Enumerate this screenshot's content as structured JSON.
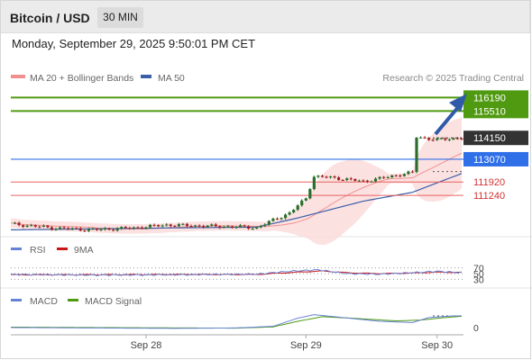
{
  "header": {
    "title": "Bitcoin / USD",
    "timeframe": "30 MIN"
  },
  "date_time": "Monday, September 29, 2025 9:50:01 PM CET",
  "copyright": "Research © 2025 Trading Central",
  "colors": {
    "resistance": "#4f9a10",
    "current": "#333333",
    "pivot": "#2f6fe8",
    "support": "#e86060",
    "ma50": "#3a5fa8",
    "bollinger": "#f29090",
    "rsi": "#6682d6",
    "rsi_ma": "#cc1414",
    "macd": "#6682d6",
    "macd_signal": "#4f9a10",
    "arrow": "#2e5aa8"
  },
  "chart_data": [
    {
      "type": "candlestick",
      "legend": [
        "MA 20 + Bollinger Bands",
        "MA 50"
      ],
      "x_ticks": [
        "Sep 28",
        "Sep 29",
        "Sep 30"
      ],
      "ylim": [
        109200,
        116800
      ],
      "levels": [
        {
          "label": "116190",
          "value": 116190,
          "kind": "resistance"
        },
        {
          "label": "115510",
          "value": 115510,
          "kind": "resistance"
        },
        {
          "label": "114150",
          "value": 114150,
          "kind": "current"
        },
        {
          "label": "113070",
          "value": 113070,
          "kind": "pivot"
        },
        {
          "label": "111920",
          "value": 111920,
          "kind": "support"
        },
        {
          "label": "111240",
          "value": 111240,
          "kind": "support"
        }
      ],
      "price_anchors": [
        [
          0,
          109800
        ],
        [
          10,
          109600
        ],
        [
          20,
          109500
        ],
        [
          30,
          109600
        ],
        [
          38,
          109750
        ],
        [
          46,
          109700
        ],
        [
          56,
          109650
        ],
        [
          60,
          109600
        ],
        [
          64,
          110000
        ],
        [
          68,
          110350
        ],
        [
          72,
          111100
        ],
        [
          74,
          112200
        ],
        [
          78,
          112150
        ],
        [
          82,
          112050
        ],
        [
          86,
          111950
        ],
        [
          90,
          112100
        ],
        [
          95,
          112300
        ],
        [
          98,
          112400
        ],
        [
          99,
          114200
        ],
        [
          104,
          114050
        ],
        [
          108,
          114120
        ],
        [
          110,
          114150
        ]
      ],
      "ma50_anchors": [
        [
          0,
          109500
        ],
        [
          40,
          109600
        ],
        [
          60,
          109640
        ],
        [
          70,
          110100
        ],
        [
          86,
          110950
        ],
        [
          98,
          111400
        ],
        [
          110,
          112350
        ]
      ]
    },
    {
      "type": "line",
      "name": "RSI",
      "legend": [
        "RSI",
        "9MA"
      ],
      "y_ticks": [
        70,
        50,
        30
      ],
      "ylim": [
        0,
        100
      ],
      "series_anchors": {
        "RSI": [
          [
            0,
            47
          ],
          [
            20,
            45
          ],
          [
            40,
            46
          ],
          [
            60,
            48
          ],
          [
            68,
            58
          ],
          [
            75,
            63
          ],
          [
            82,
            50
          ],
          [
            90,
            48
          ],
          [
            98,
            53
          ],
          [
            104,
            58
          ],
          [
            110,
            53
          ]
        ],
        "9MA": [
          [
            0,
            46
          ],
          [
            20,
            46
          ],
          [
            40,
            47
          ],
          [
            60,
            47
          ],
          [
            70,
            55
          ],
          [
            76,
            59
          ],
          [
            82,
            53
          ],
          [
            90,
            50
          ],
          [
            98,
            52
          ],
          [
            104,
            55
          ],
          [
            110,
            54
          ]
        ]
      }
    },
    {
      "type": "line",
      "name": "MACD",
      "legend": [
        "MACD",
        "MACD Signal"
      ],
      "y_ticks": [
        0
      ],
      "ylim": [
        -350,
        950
      ],
      "series_anchors": {
        "MACD": [
          [
            0,
            0
          ],
          [
            20,
            -20
          ],
          [
            40,
            -40
          ],
          [
            55,
            -20
          ],
          [
            64,
            60
          ],
          [
            70,
            450
          ],
          [
            74,
            620
          ],
          [
            80,
            500
          ],
          [
            90,
            300
          ],
          [
            98,
            240
          ],
          [
            102,
            480
          ],
          [
            108,
            560
          ],
          [
            110,
            560
          ]
        ],
        "MACD Signal": [
          [
            0,
            20
          ],
          [
            30,
            -10
          ],
          [
            55,
            -30
          ],
          [
            64,
            30
          ],
          [
            70,
            300
          ],
          [
            76,
            520
          ],
          [
            84,
            440
          ],
          [
            94,
            320
          ],
          [
            100,
            360
          ],
          [
            106,
            480
          ],
          [
            110,
            540
          ]
        ]
      }
    }
  ]
}
